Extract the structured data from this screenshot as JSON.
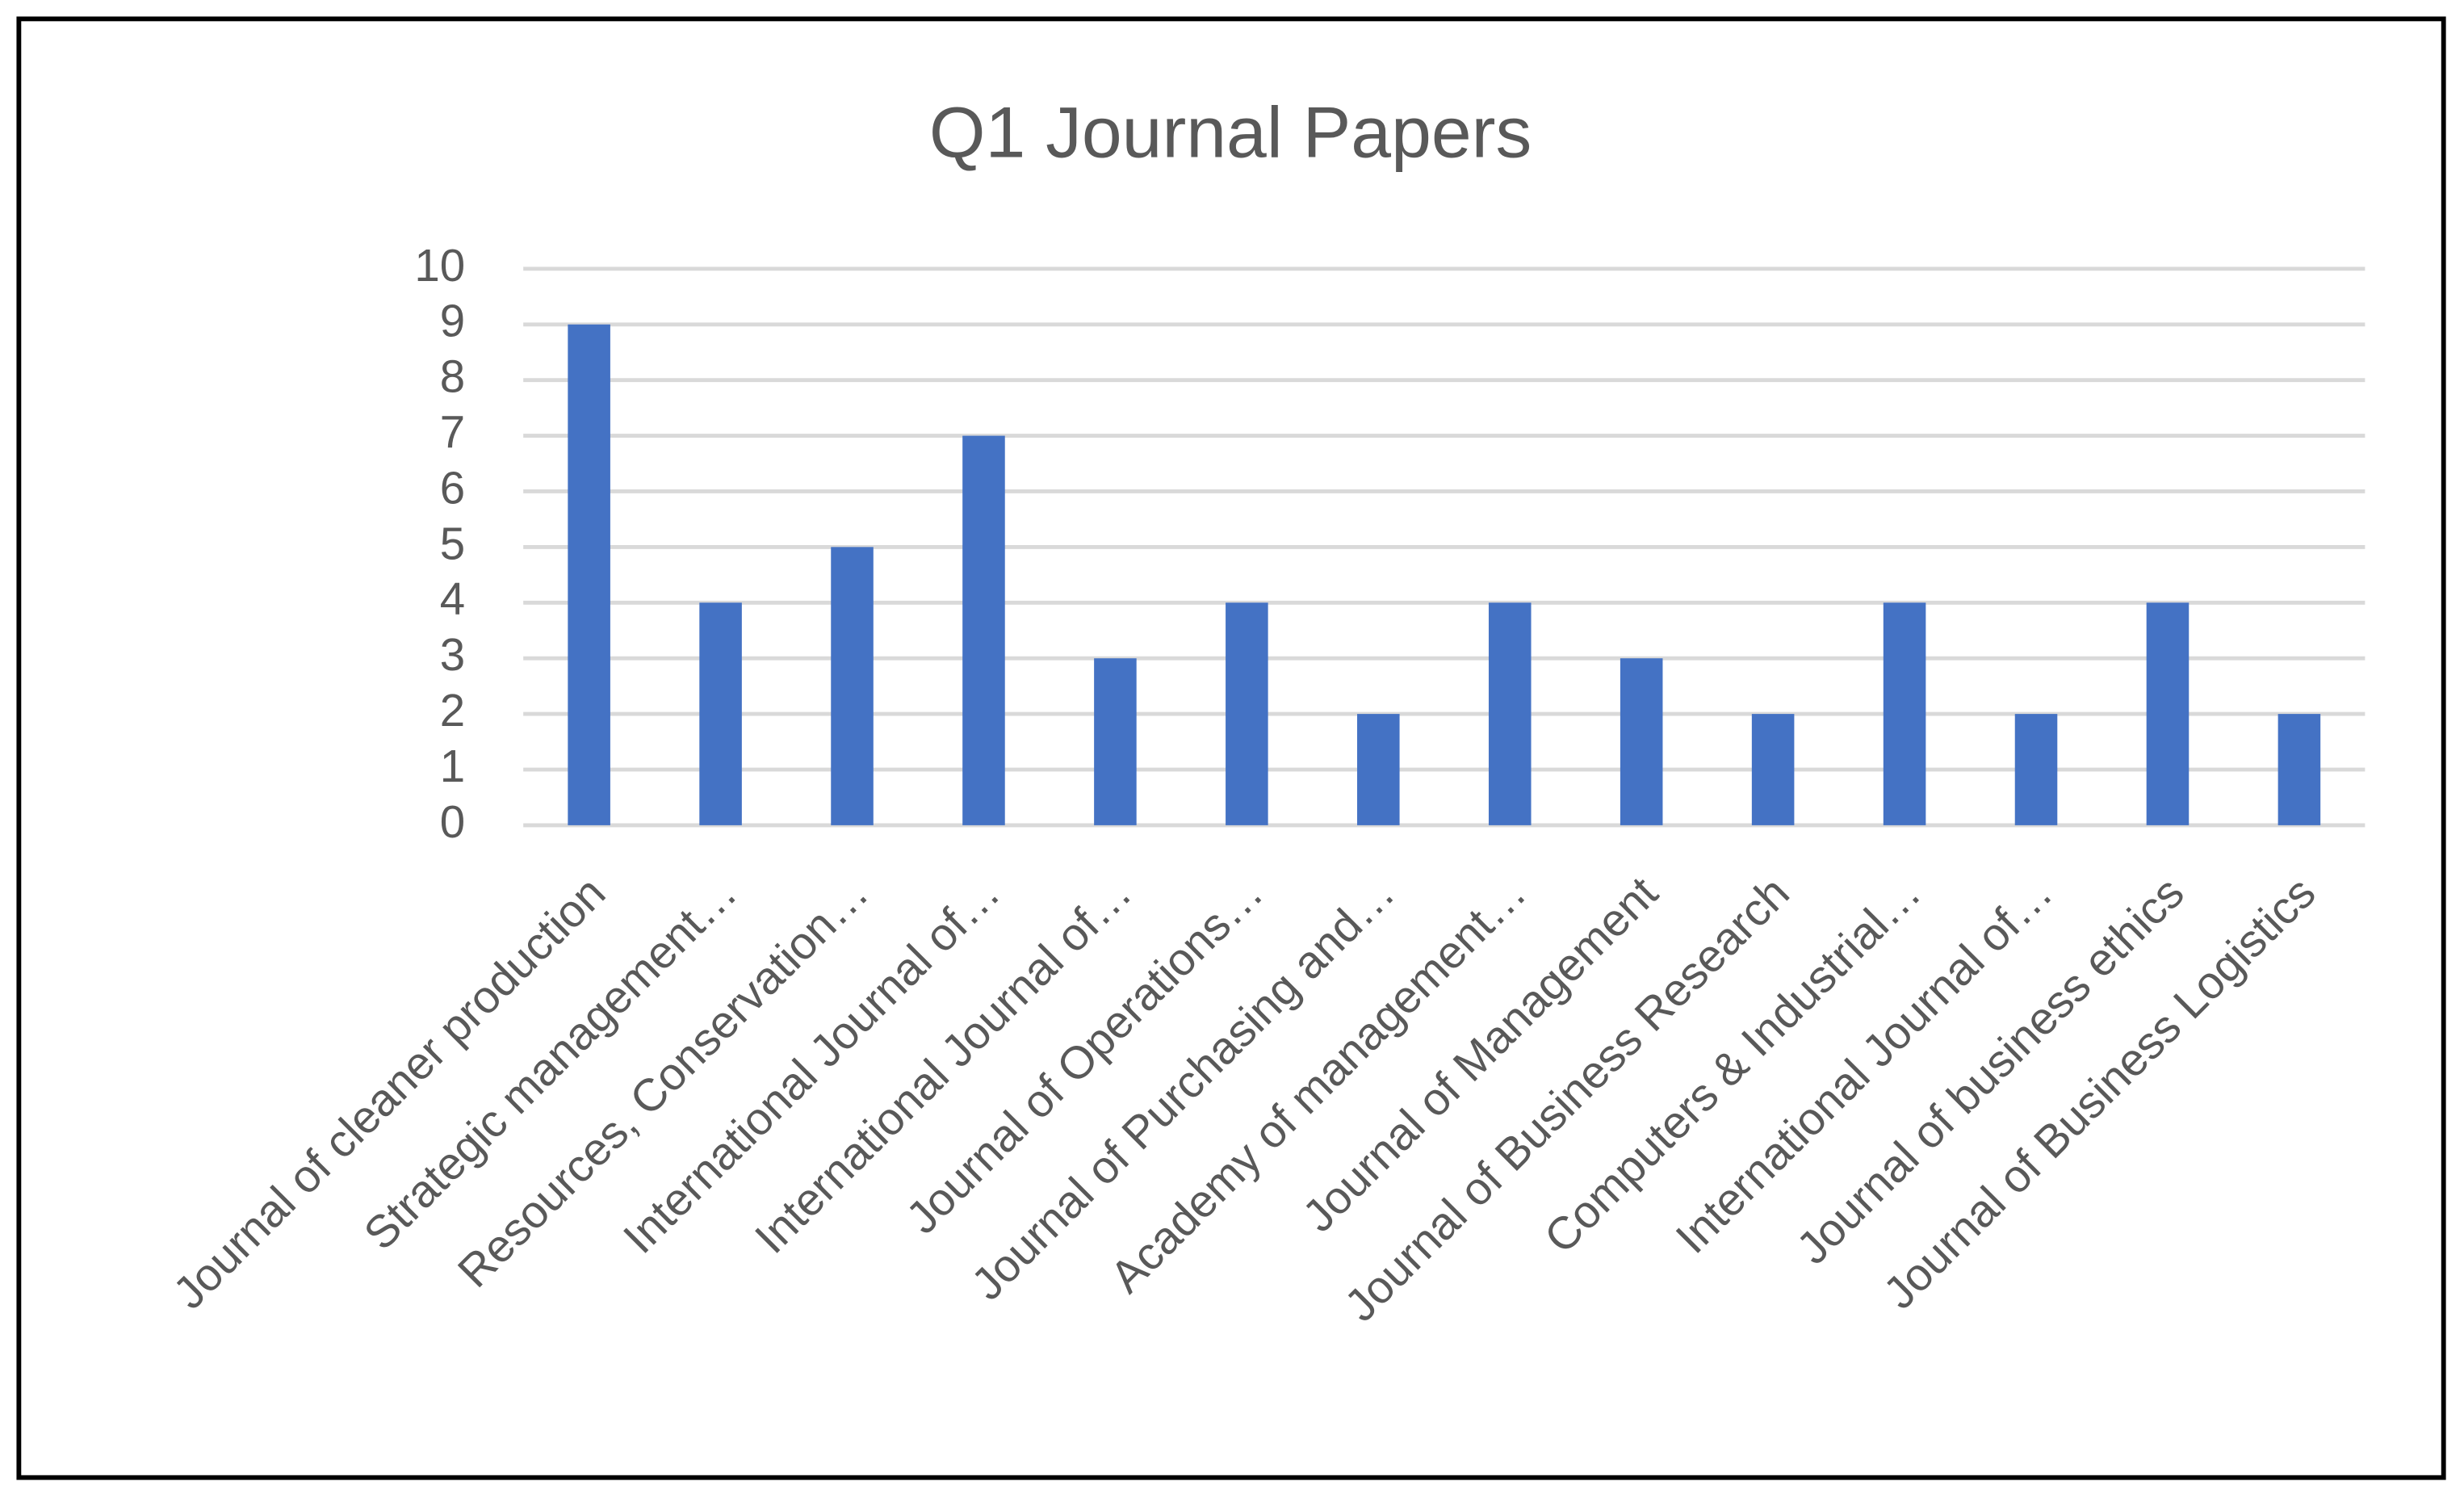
{
  "chart_data": {
    "type": "bar",
    "title": "Q1 Journal Papers",
    "categories": [
      "Journal of cleaner production",
      "Strategic management…",
      "Resources, Conservation…",
      "International Journal of…",
      "International Journal of…",
      "Journal of Operations…",
      "Journal of Purchasing and…",
      "Academy of management…",
      "Journal of Management",
      "Journal of Business Research",
      "Computers & Industrial…",
      "International Journal of…",
      "Journal of business ethics",
      "Journal of Business Logistics"
    ],
    "values": [
      9,
      4,
      5,
      7,
      3,
      4,
      2,
      4,
      3,
      2,
      4,
      2,
      4,
      2
    ],
    "color": "#4472c4",
    "ylim": [
      0,
      10
    ],
    "yticks": [
      0,
      1,
      2,
      3,
      4,
      5,
      6,
      7,
      8,
      9,
      10
    ],
    "grid": true
  }
}
